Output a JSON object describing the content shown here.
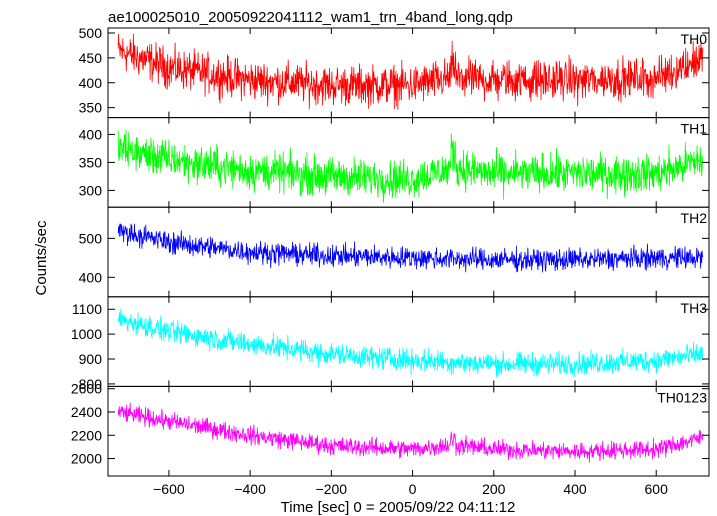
{
  "title": "ae100025010_20050922041112_wam1_trn_4band_long.qdp",
  "chart_data": {
    "type": "line",
    "title": "ae100025010_20050922041112_wam1_trn_4band_long.qdp",
    "xlabel": "Time [sec] 0 = 2005/09/22 04:11:12",
    "ylabel": "Counts/sec",
    "xlim": [
      -750,
      730
    ],
    "x_ticks": [
      -600,
      -400,
      -200,
      0,
      200,
      400,
      600
    ],
    "x_tick_labels": [
      "−600",
      "−400",
      "−200",
      "0",
      "200",
      "400",
      "600"
    ],
    "x_range": [
      -725,
      715
    ],
    "panels": [
      {
        "name": "TH0",
        "color": "#ff0000",
        "ylim": [
          330,
          510
        ],
        "y_ticks": [
          350,
          400,
          450,
          500
        ],
        "trend": [
          [
            -725,
            465
          ],
          [
            -600,
            430
          ],
          [
            -400,
            405
          ],
          [
            -200,
            395
          ],
          [
            0,
            395
          ],
          [
            100,
            410
          ],
          [
            200,
            405
          ],
          [
            400,
            405
          ],
          [
            600,
            410
          ],
          [
            715,
            450
          ]
        ],
        "noise": 28,
        "spike_x": 100,
        "spike_h": 30
      },
      {
        "name": "TH1",
        "color": "#00ff00",
        "ylim": [
          270,
          430
        ],
        "y_ticks": [
          300,
          350,
          400
        ],
        "trend": [
          [
            -725,
            375
          ],
          [
            -600,
            355
          ],
          [
            -400,
            335
          ],
          [
            -200,
            325
          ],
          [
            0,
            320
          ],
          [
            100,
            340
          ],
          [
            200,
            330
          ],
          [
            400,
            330
          ],
          [
            600,
            330
          ],
          [
            715,
            355
          ]
        ],
        "noise": 24,
        "spike_x": 100,
        "spike_h": 35
      },
      {
        "name": "TH2",
        "color": "#0000ff",
        "ylim": [
          350,
          580
        ],
        "y_ticks": [
          400,
          500
        ],
        "trend": [
          [
            -725,
            520
          ],
          [
            -600,
            490
          ],
          [
            -400,
            465
          ],
          [
            -200,
            455
          ],
          [
            0,
            450
          ],
          [
            200,
            445
          ],
          [
            400,
            445
          ],
          [
            600,
            450
          ],
          [
            715,
            450
          ]
        ],
        "noise": 20,
        "spike_x": 100,
        "spike_h": 0
      },
      {
        "name": "TH3",
        "color": "#00ffff",
        "ylim": [
          790,
          1150
        ],
        "y_ticks": [
          800,
          900,
          1000,
          1100
        ],
        "trend": [
          [
            -725,
            1060
          ],
          [
            -600,
            1010
          ],
          [
            -400,
            960
          ],
          [
            -200,
            920
          ],
          [
            0,
            895
          ],
          [
            200,
            880
          ],
          [
            400,
            880
          ],
          [
            600,
            895
          ],
          [
            715,
            920
          ]
        ],
        "noise": 32,
        "spike_x": 100,
        "spike_h": 0
      },
      {
        "name": "TH0123",
        "color": "#ff00ff",
        "ylim": [
          1850,
          2620
        ],
        "y_ticks": [
          2000,
          2200,
          2400,
          2600
        ],
        "trend": [
          [
            -725,
            2400
          ],
          [
            -600,
            2320
          ],
          [
            -400,
            2200
          ],
          [
            -200,
            2110
          ],
          [
            0,
            2080
          ],
          [
            100,
            2120
          ],
          [
            200,
            2080
          ],
          [
            400,
            2060
          ],
          [
            600,
            2080
          ],
          [
            715,
            2180
          ]
        ],
        "noise": 55,
        "spike_x": 100,
        "spike_h": 60
      }
    ]
  }
}
